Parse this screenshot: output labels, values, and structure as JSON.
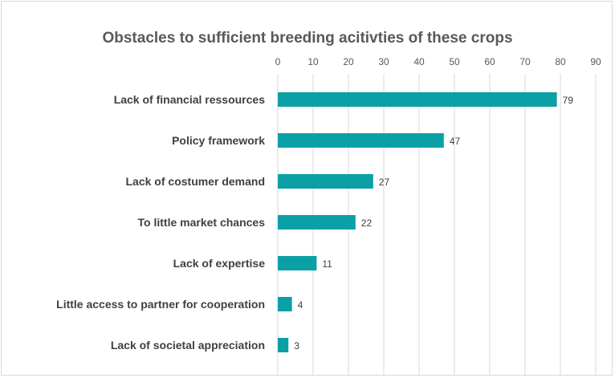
{
  "chart_data": {
    "type": "bar",
    "orientation": "horizontal",
    "title": "Obstacles to sufficient breeding acitivties of these crops",
    "categories": [
      "Lack of financial ressources",
      "Policy framework",
      "Lack of costumer demand",
      "To little market chances",
      "Lack of expertise",
      "Little access to partner for cooperation",
      "Lack of societal appreciation"
    ],
    "values": [
      79,
      47,
      27,
      22,
      11,
      4,
      3
    ],
    "xlim": [
      0,
      90
    ],
    "xticks": [
      "0",
      "10",
      "20",
      "30",
      "40",
      "50",
      "60",
      "70",
      "80",
      "90"
    ],
    "x_axis_position": "top",
    "grid": true,
    "data_labels": true,
    "legend": "none",
    "bar_color": "#0aa0a6"
  }
}
